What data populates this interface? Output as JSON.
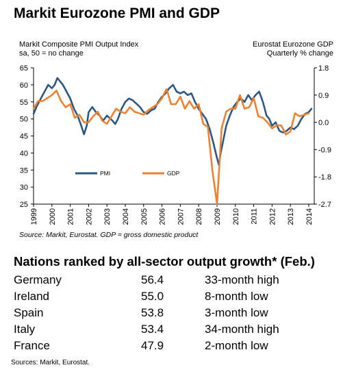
{
  "title": "Markit Eurozone PMI and GDP",
  "left_axis_title": [
    "Markit Composite PMI Output Index",
    "sa, 50 = no change"
  ],
  "right_axis_title": [
    "Eurostat Eurozone GDP",
    "Quarterly % change"
  ],
  "source": "Source: Markit, Eurostat. GDP = gross domestic product",
  "colors": {
    "pmi": "#2a5783",
    "gdp": "#f07f2e",
    "axis": "#000000"
  },
  "chart_data": {
    "type": "line",
    "x_ticks": [
      "1999",
      "2000",
      "2001",
      "2002",
      "2003",
      "2004",
      "2005",
      "2006",
      "2007",
      "2008",
      "2009",
      "2010",
      "2011",
      "2012",
      "2013",
      "2014"
    ],
    "y_left": {
      "ticks": [
        "65",
        "60",
        "55",
        "50",
        "45",
        "40",
        "35",
        "30",
        "25"
      ],
      "range": [
        25,
        65
      ]
    },
    "y_right": {
      "ticks": [
        "1.8",
        "0.9",
        "0.0",
        "-0.9",
        "-1.8",
        "-2.7"
      ],
      "range": [
        -2.7,
        1.8
      ]
    },
    "legend": {
      "placement": "lower-left"
    },
    "series": [
      {
        "name": "PMI",
        "axis": "left",
        "x": [
          1999.0,
          1999.2,
          1999.4,
          1999.6,
          1999.8,
          2000.0,
          2000.15,
          2000.3,
          2000.45,
          2000.6,
          2000.8,
          2001.0,
          2001.2,
          2001.4,
          2001.6,
          2001.75,
          2001.9,
          2002.0,
          2002.2,
          2002.4,
          2002.6,
          2002.8,
          2003.0,
          2003.2,
          2003.3,
          2003.45,
          2003.6,
          2003.8,
          2004.0,
          2004.2,
          2004.4,
          2004.6,
          2004.8,
          2005.0,
          2005.2,
          2005.4,
          2005.6,
          2005.8,
          2006.0,
          2006.2,
          2006.4,
          2006.6,
          2006.8,
          2007.0,
          2007.2,
          2007.4,
          2007.6,
          2007.8,
          2008.0,
          2008.2,
          2008.4,
          2008.6,
          2008.8,
          2009.0,
          2009.1,
          2009.2,
          2009.35,
          2009.5,
          2009.7,
          2009.9,
          2010.1,
          2010.3,
          2010.5,
          2010.7,
          2010.9,
          2011.1,
          2011.3,
          2011.5,
          2011.7,
          2011.85,
          2012.0,
          2012.2,
          2012.4,
          2012.6,
          2012.8,
          2013.0,
          2013.2,
          2013.4,
          2013.6,
          2013.8,
          2014.0,
          2014.15
        ],
        "values": [
          51.5,
          54,
          56,
          58,
          60,
          59,
          60,
          62,
          61,
          60,
          58,
          56,
          53,
          51,
          48,
          45.5,
          48,
          52,
          53.5,
          52,
          51,
          49.5,
          51,
          50,
          49.5,
          48.5,
          50,
          53,
          55,
          56,
          55.5,
          54.5,
          53.5,
          52,
          51.5,
          52.5,
          53,
          55,
          56.5,
          57.5,
          59,
          60,
          58,
          57.5,
          58,
          57,
          57.5,
          55,
          53,
          51.5,
          50,
          47,
          43,
          38.5,
          36.5,
          40,
          44,
          48,
          51,
          53.5,
          55,
          56,
          55,
          57,
          55.5,
          57,
          58,
          55,
          51,
          50,
          48,
          49,
          46.5,
          46,
          46.5,
          47.5,
          47,
          48,
          50,
          51.5,
          52,
          53
        ]
      },
      {
        "name": "GDP",
        "axis": "right",
        "x": [
          1999.0,
          1999.25,
          1999.5,
          1999.75,
          2000.0,
          2000.25,
          2000.5,
          2000.75,
          2001.0,
          2001.25,
          2001.5,
          2001.75,
          2002.0,
          2002.25,
          2002.5,
          2002.75,
          2003.0,
          2003.25,
          2003.5,
          2003.75,
          2004.0,
          2004.25,
          2004.5,
          2004.75,
          2005.0,
          2005.25,
          2005.5,
          2005.75,
          2006.0,
          2006.25,
          2006.5,
          2006.75,
          2007.0,
          2007.25,
          2007.5,
          2007.75,
          2008.0,
          2008.25,
          2008.5,
          2008.75,
          2009.0,
          2009.25,
          2009.5,
          2009.75,
          2010.0,
          2010.25,
          2010.5,
          2010.75,
          2011.0,
          2011.25,
          2011.5,
          2011.75,
          2012.0,
          2012.25,
          2012.5,
          2012.75,
          2013.0,
          2013.25,
          2013.5,
          2013.75,
          2014.0
        ],
        "values": [
          0.45,
          0.7,
          0.7,
          0.8,
          0.9,
          1.05,
          0.7,
          0.5,
          0.6,
          0.15,
          0.25,
          0.0,
          0.0,
          0.2,
          0.35,
          0.05,
          -0.05,
          0.2,
          0.45,
          0.35,
          0.3,
          0.5,
          0.35,
          0.3,
          0.25,
          0.4,
          0.5,
          0.6,
          0.8,
          1.1,
          0.6,
          0.6,
          0.85,
          0.45,
          0.7,
          0.45,
          0.6,
          -0.05,
          -0.15,
          -1.6,
          -2.7,
          -0.2,
          0.35,
          0.45,
          0.45,
          0.9,
          0.45,
          0.5,
          0.8,
          0.2,
          0.15,
          0.0,
          -0.2,
          -0.1,
          -0.1,
          -0.4,
          -0.3,
          0.3,
          0.2,
          0.25,
          0.3
        ]
      }
    ]
  },
  "table": {
    "title": "Nations ranked by all-sector output growth* (Feb.)",
    "rows": [
      {
        "nation": "Germany",
        "value": "56.4",
        "note": "33-month high"
      },
      {
        "nation": "Ireland",
        "value": "55.0",
        "note": "8-month low"
      },
      {
        "nation": "Spain",
        "value": "53.8",
        "note": "3-month low"
      },
      {
        "nation": "Italy",
        "value": "53.4",
        "note": "34-month high"
      },
      {
        "nation": "France",
        "value": "47.9",
        "note": "2-month low"
      }
    ]
  },
  "footer": "Sources: Markit, Eurostat."
}
